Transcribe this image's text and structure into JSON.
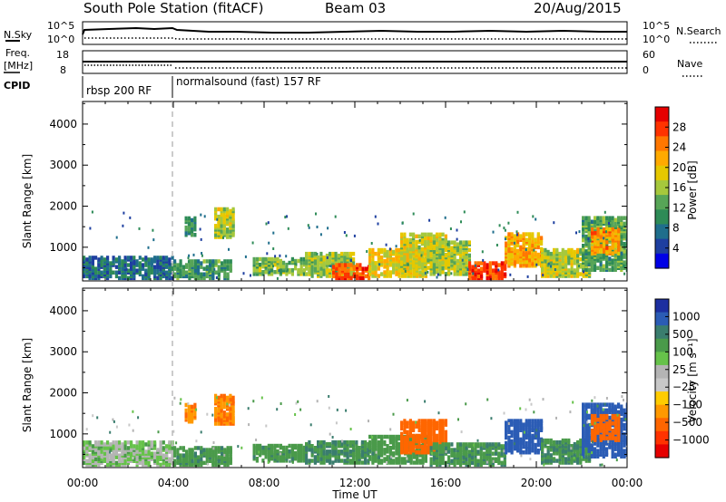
{
  "header": {
    "station": "South Pole Station (fitACF)",
    "beam": "Beam 03",
    "date": "20/Aug/2015"
  },
  "summary": {
    "nsky_label": "N.Sky",
    "nsky_ticks": [
      "10^5",
      "10^0"
    ],
    "nsearch_label": "N.Search",
    "nsearch_ticks": [
      "10^5",
      "10^0"
    ],
    "freq_label_line1": "Freq.",
    "freq_label_line2": "[MHz]",
    "freq_ticks": [
      "18",
      "8"
    ],
    "nave_label": "Nave",
    "nave_ticks": [
      "60",
      "0"
    ],
    "cpid_label": "CPID",
    "cpid_segments": [
      {
        "label": "rbsp 200 RF",
        "start_hour": 0
      },
      {
        "label": "normalsound (fast) 157 RF",
        "start_hour": 4
      }
    ]
  },
  "colorbars": {
    "power": {
      "label": "Power [dB]",
      "ticks": [
        "28",
        "24",
        "20",
        "16",
        "12",
        "8",
        "4"
      ],
      "colors": [
        "#e60000",
        "#ff3300",
        "#ff7700",
        "#ffaa00",
        "#e6c800",
        "#a6c83c",
        "#57a557",
        "#2e8b57",
        "#1f6e8c",
        "#1e3fa0",
        "#0000e6"
      ]
    },
    "velocity": {
      "label": "Velocity [m s⁻¹]",
      "ticks": [
        "1000",
        "500",
        "100",
        "25",
        "−25",
        "−100",
        "−500",
        "−1000"
      ],
      "colors": [
        "#1c2fa0",
        "#2b5cb5",
        "#3a7d6e",
        "#4a9a4a",
        "#66c24a",
        "#b4b4b4",
        "#c8c8c8",
        "#ffcc00",
        "#ff9900",
        "#ff6600",
        "#ff3300",
        "#e60000"
      ]
    }
  },
  "chart_data": [
    {
      "type": "heatmap",
      "name": "power",
      "ylabel": "Slant Range [km]",
      "ylim": [
        180,
        4550
      ],
      "yticks": [
        1000,
        2000,
        3000,
        4000
      ],
      "xlim": [
        0,
        24
      ],
      "regions": [
        {
          "t0": 0.0,
          "t1": 4.0,
          "r0": 200,
          "r1": 700,
          "val": 6
        },
        {
          "t0": 4.0,
          "t1": 6.5,
          "r0": 200,
          "r1": 650,
          "val": 10
        },
        {
          "t0": 5.8,
          "t1": 6.6,
          "r0": 1200,
          "r1": 1900,
          "val": 16
        },
        {
          "t0": 4.5,
          "t1": 4.9,
          "r0": 1250,
          "r1": 1700,
          "val": 9
        },
        {
          "t0": 7.5,
          "t1": 9.8,
          "r0": 300,
          "r1": 700,
          "val": 13
        },
        {
          "t0": 9.8,
          "t1": 12.0,
          "r0": 250,
          "r1": 800,
          "val": 14
        },
        {
          "t0": 11.0,
          "t1": 12.6,
          "r0": 200,
          "r1": 550,
          "val": 26
        },
        {
          "t0": 12.6,
          "t1": 15.2,
          "r0": 250,
          "r1": 900,
          "val": 18
        },
        {
          "t0": 14.0,
          "t1": 16.0,
          "r0": 450,
          "r1": 1300,
          "val": 17
        },
        {
          "t0": 15.3,
          "t1": 17.0,
          "r0": 300,
          "r1": 1100,
          "val": 15
        },
        {
          "t0": 17.0,
          "t1": 18.6,
          "r0": 200,
          "r1": 600,
          "val": 27
        },
        {
          "t0": 18.6,
          "t1": 20.2,
          "r0": 500,
          "r1": 1300,
          "val": 21
        },
        {
          "t0": 20.2,
          "t1": 22.4,
          "r0": 250,
          "r1": 900,
          "val": 16
        },
        {
          "t0": 22.0,
          "t1": 24.0,
          "r0": 400,
          "r1": 1700,
          "val": 11
        },
        {
          "t0": 22.4,
          "t1": 23.6,
          "r0": 800,
          "r1": 1400,
          "val": 22
        }
      ]
    },
    {
      "type": "heatmap",
      "name": "velocity",
      "ylabel": "Slant Range [km]",
      "xlabel": "Time UT",
      "ylim": [
        180,
        4550
      ],
      "yticks": [
        1000,
        2000,
        3000,
        4000
      ],
      "xlim": [
        0,
        24
      ],
      "xticks": [
        "00:00",
        "04:00",
        "08:00",
        "12:00",
        "16:00",
        "20:00",
        "00:00"
      ],
      "regions": [
        {
          "t0": 0.0,
          "t1": 4.0,
          "r0": 200,
          "r1": 750,
          "val": 30
        },
        {
          "t0": 4.0,
          "t1": 6.5,
          "r0": 200,
          "r1": 650,
          "val": 120
        },
        {
          "t0": 5.8,
          "t1": 6.6,
          "r0": 1200,
          "r1": 1900,
          "val": -150
        },
        {
          "t0": 4.5,
          "t1": 4.9,
          "r0": 1250,
          "r1": 1700,
          "val": -120
        },
        {
          "t0": 7.5,
          "t1": 9.8,
          "r0": 300,
          "r1": 700,
          "val": 110
        },
        {
          "t0": 9.8,
          "t1": 12.6,
          "r0": 250,
          "r1": 750,
          "val": 150
        },
        {
          "t0": 12.6,
          "t1": 15.2,
          "r0": 250,
          "r1": 900,
          "val": 110
        },
        {
          "t0": 14.0,
          "t1": 16.0,
          "r0": 500,
          "r1": 1300,
          "val": -300
        },
        {
          "t0": 15.3,
          "t1": 18.6,
          "r0": 200,
          "r1": 700,
          "val": 130
        },
        {
          "t0": 18.6,
          "t1": 20.2,
          "r0": 500,
          "r1": 1300,
          "val": 600
        },
        {
          "t0": 20.2,
          "t1": 22.4,
          "r0": 250,
          "r1": 800,
          "val": 140
        },
        {
          "t0": 22.0,
          "t1": 24.0,
          "r0": 400,
          "r1": 1700,
          "val": 700
        },
        {
          "t0": 22.4,
          "t1": 23.6,
          "r0": 800,
          "r1": 1400,
          "val": -200
        }
      ]
    }
  ]
}
